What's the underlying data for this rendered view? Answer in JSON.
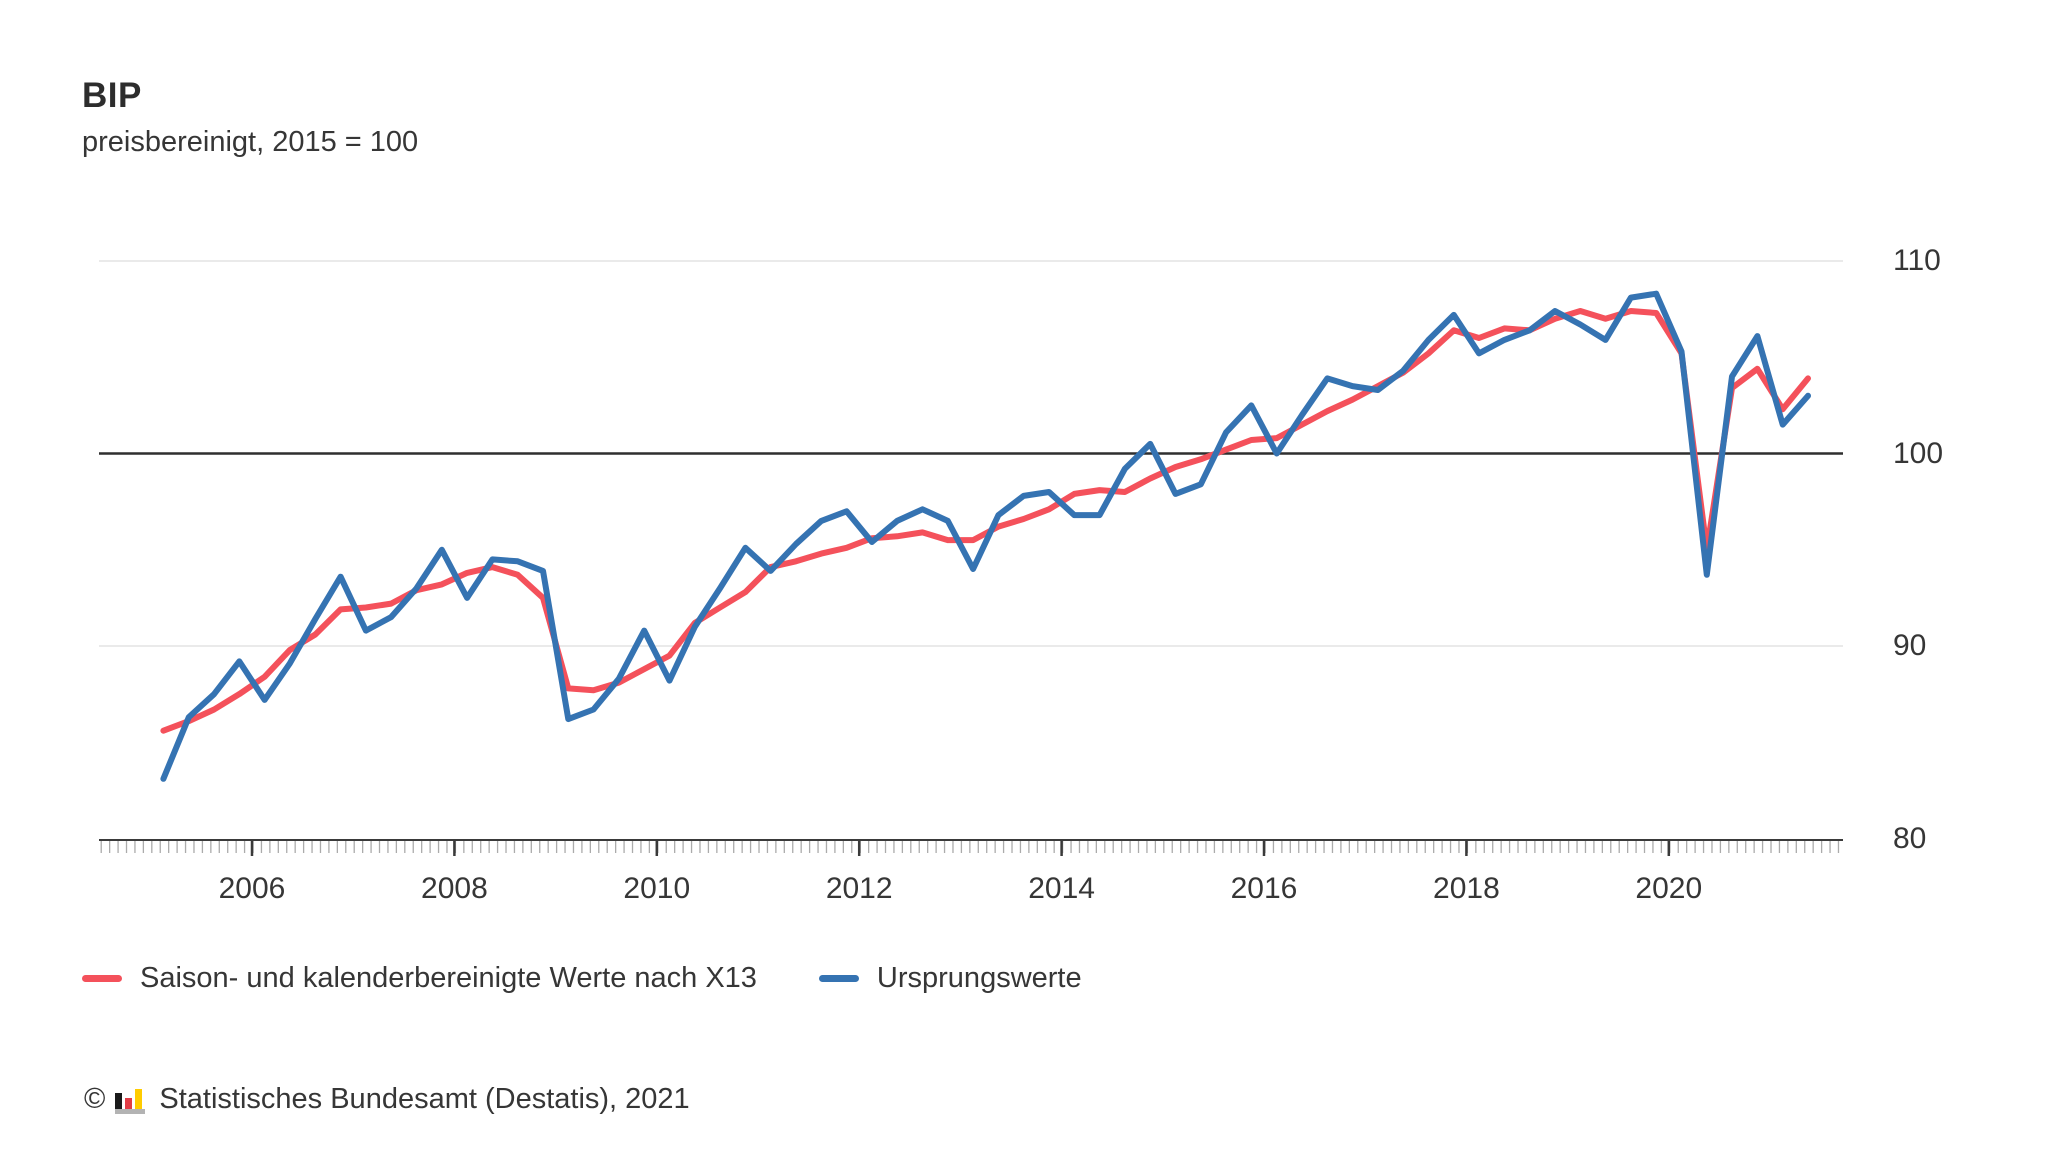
{
  "header": {
    "title": "BIP",
    "subtitle": "preisbereinigt, 2015 = 100"
  },
  "chart_data": {
    "type": "line",
    "title": "BIP",
    "subtitle": "preisbereinigt, 2015 = 100",
    "x_unit": "quarters",
    "x_start": "2005 Q1",
    "x_end": "2021 Q2",
    "x_tick_labels": [
      "2006",
      "2008",
      "2010",
      "2012",
      "2014",
      "2016",
      "2018",
      "2020"
    ],
    "ylim": [
      80,
      110
    ],
    "y_ticks": [
      110,
      100,
      90,
      80
    ],
    "baseline": 100,
    "grid": true,
    "legend_position": "bottom",
    "colors": {
      "adjusted": "#f4515b",
      "original": "#3573b2",
      "grid": "#e4e4e4",
      "baseline": "#2f2f2f",
      "axis": "#3a3a3a",
      "minor_tick": "#ababab",
      "text": "#363636"
    },
    "series": [
      {
        "name": "Saison- und kalenderbereinigte Werte nach X13",
        "color": "#f4515b",
        "values": [
          85.6,
          86.1,
          86.7,
          87.5,
          88.4,
          89.8,
          90.6,
          91.9,
          92.0,
          92.2,
          92.9,
          93.2,
          93.8,
          94.1,
          93.7,
          92.5,
          87.8,
          87.7,
          88.1,
          88.8,
          89.5,
          91.2,
          92.0,
          92.8,
          94.1,
          94.4,
          94.8,
          95.1,
          95.6,
          95.7,
          95.9,
          95.5,
          95.5,
          96.2,
          96.6,
          97.1,
          97.9,
          98.1,
          98.0,
          98.7,
          99.3,
          99.7,
          100.2,
          100.7,
          100.8,
          101.5,
          102.2,
          102.8,
          103.5,
          104.2,
          105.2,
          106.4,
          106.0,
          106.5,
          106.4,
          107.0,
          107.4,
          107.0,
          107.4,
          107.3,
          105.2,
          95.0,
          103.4,
          104.4,
          102.3,
          103.9
        ]
      },
      {
        "name": "Ursprungswerte",
        "color": "#3573b2",
        "values": [
          83.1,
          86.3,
          87.5,
          89.2,
          87.2,
          89.1,
          91.4,
          93.6,
          90.8,
          91.5,
          93.0,
          95.0,
          92.5,
          94.5,
          94.4,
          93.9,
          86.2,
          86.7,
          88.3,
          90.8,
          88.2,
          91.0,
          93.0,
          95.1,
          93.9,
          95.3,
          96.5,
          97.0,
          95.4,
          96.5,
          97.1,
          96.5,
          94.0,
          96.8,
          97.8,
          98.0,
          96.8,
          96.8,
          99.2,
          100.5,
          97.9,
          98.4,
          101.1,
          102.5,
          100.0,
          102.0,
          103.9,
          103.5,
          103.3,
          104.3,
          105.9,
          107.2,
          105.2,
          105.9,
          106.4,
          107.4,
          106.7,
          105.9,
          108.1,
          108.3,
          105.3,
          93.7,
          104.0,
          106.1,
          101.5,
          103.0
        ]
      }
    ]
  },
  "legend": {
    "items": [
      {
        "label": "Saison- und kalenderbereinigte Werte nach X13",
        "color": "#f4515b"
      },
      {
        "label": "Ursprungswerte",
        "color": "#3573b2"
      }
    ]
  },
  "footer": {
    "copyright": "©",
    "source": "Statistisches Bundesamt (Destatis), 2021",
    "logo_colors": {
      "bar1": "#1a1a1a",
      "bar2": "#e23c46",
      "bar3": "#ffcc00",
      "base": "#b3b3b3"
    }
  }
}
